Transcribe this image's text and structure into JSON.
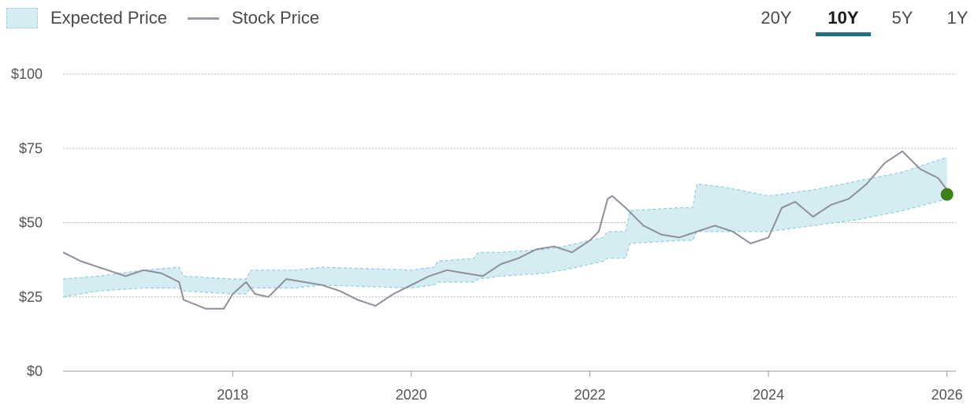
{
  "legend": {
    "expected_label": "Expected Price",
    "stock_label": "Stock Price"
  },
  "range_tabs": [
    {
      "label": "20Y",
      "active": false
    },
    {
      "label": "10Y",
      "active": true
    },
    {
      "label": "5Y",
      "active": false
    },
    {
      "label": "1Y",
      "active": false
    }
  ],
  "colors": {
    "band_fill": "#d4ecf2",
    "band_edge": "#8fcfdb",
    "stock_line": "#8e9099",
    "current_dot": "#3f7f1a",
    "active_tab": "#1f6f80"
  },
  "chart_data": {
    "type": "line",
    "title": "",
    "xlabel": "",
    "ylabel": "",
    "xlim": [
      2016.1,
      2026.1
    ],
    "ylim": [
      0,
      100
    ],
    "yticks": [
      0,
      25,
      50,
      75,
      100
    ],
    "ytick_labels": [
      "$0",
      "$25",
      "$50",
      "$75",
      "$100"
    ],
    "xticks": [
      2018,
      2020,
      2022,
      2024,
      2026
    ],
    "xtick_labels": [
      "2018",
      "2020",
      "2022",
      "2024",
      "2026"
    ],
    "grid": true,
    "series": [
      {
        "name": "Expected Price",
        "kind": "band",
        "x": [
          2016.1,
          2016.5,
          2017.0,
          2017.4,
          2017.45,
          2018.0,
          2018.15,
          2018.2,
          2018.7,
          2019.0,
          2019.5,
          2020.0,
          2020.25,
          2020.3,
          2020.7,
          2020.75,
          2021.0,
          2021.5,
          2021.7,
          2022.0,
          2022.15,
          2022.2,
          2022.4,
          2022.45,
          2023.0,
          2023.15,
          2023.2,
          2023.5,
          2024.0,
          2024.5,
          2025.0,
          2025.5,
          2026.0
        ],
        "upper": [
          31,
          32,
          34,
          35,
          32,
          31,
          31,
          34,
          34,
          35,
          34.5,
          34,
          35,
          37,
          38,
          40,
          40,
          41,
          42,
          44,
          45,
          47,
          47,
          54,
          55,
          55,
          63,
          62,
          59,
          61,
          64,
          67,
          72
        ],
        "lower": [
          25,
          27,
          28,
          28,
          27,
          26,
          26,
          28,
          28,
          29,
          28.5,
          28,
          29,
          30,
          30,
          31,
          32,
          33,
          34,
          36,
          37,
          38,
          38,
          43,
          44,
          44,
          47,
          47,
          47,
          49,
          51,
          54,
          58
        ]
      },
      {
        "name": "Stock Price",
        "kind": "line",
        "x": [
          2016.1,
          2016.3,
          2016.6,
          2016.8,
          2017.0,
          2017.2,
          2017.4,
          2017.45,
          2017.7,
          2017.9,
          2018.0,
          2018.15,
          2018.25,
          2018.4,
          2018.6,
          2018.8,
          2019.0,
          2019.2,
          2019.4,
          2019.6,
          2019.8,
          2020.0,
          2020.2,
          2020.4,
          2020.6,
          2020.8,
          2021.0,
          2021.2,
          2021.4,
          2021.6,
          2021.8,
          2022.0,
          2022.1,
          2022.2,
          2022.25,
          2022.4,
          2022.6,
          2022.8,
          2023.0,
          2023.2,
          2023.4,
          2023.6,
          2023.8,
          2024.0,
          2024.15,
          2024.3,
          2024.5,
          2024.7,
          2024.9,
          2025.1,
          2025.3,
          2025.5,
          2025.7,
          2025.9,
          2026.0
        ],
        "y": [
          40,
          37,
          34,
          32,
          34,
          33,
          30,
          24,
          21,
          21,
          26,
          30,
          26,
          25,
          31,
          30,
          29,
          27,
          24,
          22,
          26,
          29,
          32,
          34,
          33,
          32,
          36,
          38,
          41,
          42,
          40,
          44,
          47,
          58,
          59,
          55,
          49,
          46,
          45,
          47,
          49,
          47,
          43,
          45,
          55,
          57,
          52,
          56,
          58,
          63,
          70,
          74,
          68,
          65,
          61
        ]
      }
    ],
    "current_point": {
      "x": 2026.0,
      "y": 59.5
    }
  }
}
